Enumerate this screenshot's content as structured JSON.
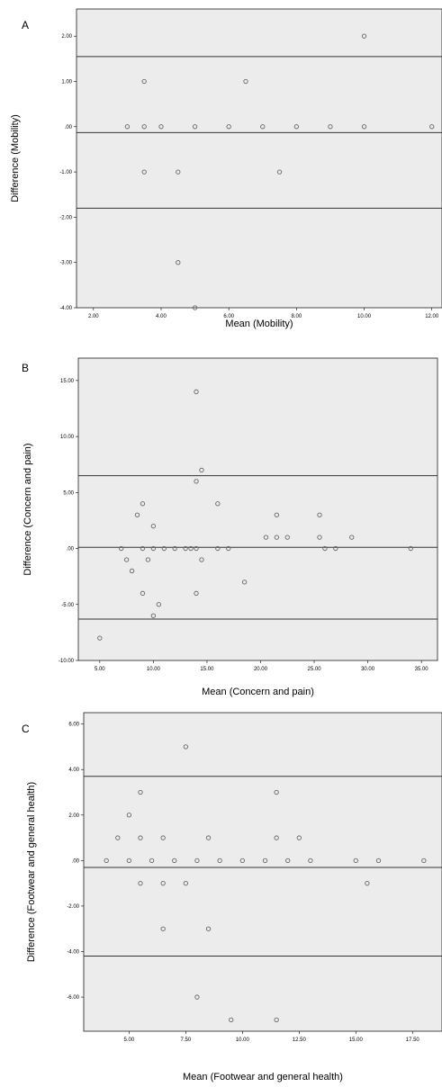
{
  "chart_data": [
    {
      "type": "scatter",
      "panel_label": "A",
      "xlabel": "Mean (Mobility)",
      "ylabel": "Difference (Mobility)",
      "xlim": [
        1.5,
        12.3
      ],
      "ylim": [
        -4.0,
        2.6
      ],
      "xticks": [
        2.0,
        4.0,
        6.0,
        8.0,
        10.0,
        12.0
      ],
      "yticks": [
        -4.0,
        -3.0,
        -2.0,
        -1.0,
        0.0,
        1.0,
        2.0
      ],
      "xtick_labels": [
        "2.00",
        "4.00",
        "6.00",
        "8.00",
        "10.00",
        "12.00"
      ],
      "ytick_labels": [
        "-4.00",
        "-3.00",
        "-2.00",
        "-1.00",
        ".00",
        "1.00",
        "2.00"
      ],
      "reference_lines": [
        1.55,
        -0.13,
        -1.8
      ],
      "points": [
        [
          3.0,
          0.0
        ],
        [
          3.5,
          1.0
        ],
        [
          3.5,
          0.0
        ],
        [
          3.5,
          -1.0
        ],
        [
          4.0,
          0.0
        ],
        [
          4.5,
          -1.0
        ],
        [
          4.5,
          -3.0
        ],
        [
          5.0,
          0.0
        ],
        [
          5.0,
          -4.0
        ],
        [
          6.0,
          0.0
        ],
        [
          6.5,
          1.0
        ],
        [
          7.0,
          0.0
        ],
        [
          7.5,
          -1.0
        ],
        [
          8.0,
          0.0
        ],
        [
          9.0,
          0.0
        ],
        [
          10.0,
          2.0
        ],
        [
          10.0,
          0.0
        ],
        [
          12.0,
          0.0
        ]
      ],
      "grid": false,
      "legend": "none"
    },
    {
      "type": "scatter",
      "panel_label": "B",
      "xlabel": "Mean (Concern and pain)",
      "ylabel": "Difference (Concern and pain)",
      "xlim": [
        3.0,
        36.5
      ],
      "ylim": [
        -10.0,
        17.0
      ],
      "xticks": [
        5,
        10,
        15,
        20,
        25,
        30,
        35
      ],
      "yticks": [
        -10,
        -5,
        0,
        5,
        10,
        15
      ],
      "xtick_labels": [
        "5.00",
        "10.00",
        "15.00",
        "20.00",
        "25.00",
        "30.00",
        "35.00"
      ],
      "ytick_labels": [
        "-10.00",
        "-5.00",
        ".00",
        "5.00",
        "10.00",
        "15.00"
      ],
      "reference_lines": [
        6.5,
        0.1,
        -6.3
      ],
      "points": [
        [
          5.0,
          -8.0
        ],
        [
          7.0,
          0.0
        ],
        [
          7.5,
          -1.0
        ],
        [
          8.0,
          -2.0
        ],
        [
          8.5,
          3.0
        ],
        [
          9.0,
          4.0
        ],
        [
          9.0,
          0.0
        ],
        [
          9.0,
          -4.0
        ],
        [
          9.5,
          -1.0
        ],
        [
          10.0,
          2.0
        ],
        [
          10.0,
          0.0
        ],
        [
          10.0,
          -6.0
        ],
        [
          10.5,
          -5.0
        ],
        [
          11.0,
          0.0
        ],
        [
          12.0,
          0.0
        ],
        [
          13.0,
          0.0
        ],
        [
          13.5,
          0.0
        ],
        [
          14.0,
          14.0
        ],
        [
          14.0,
          6.0
        ],
        [
          14.0,
          0.0
        ],
        [
          14.0,
          -4.0
        ],
        [
          14.5,
          7.0
        ],
        [
          14.5,
          -1.0
        ],
        [
          16.0,
          4.0
        ],
        [
          16.0,
          0.0
        ],
        [
          17.0,
          0.0
        ],
        [
          18.5,
          -3.0
        ],
        [
          20.5,
          1.0
        ],
        [
          21.5,
          3.0
        ],
        [
          21.5,
          1.0
        ],
        [
          22.5,
          1.0
        ],
        [
          25.5,
          3.0
        ],
        [
          25.5,
          1.0
        ],
        [
          26.0,
          0.0
        ],
        [
          27.0,
          0.0
        ],
        [
          28.5,
          1.0
        ],
        [
          34.0,
          0.0
        ]
      ],
      "grid": false,
      "legend": "none"
    },
    {
      "type": "scatter",
      "panel_label": "C",
      "xlabel": "Mean (Footwear and general health)",
      "ylabel": "Difference (Footwear and general health)",
      "xlim": [
        3.0,
        18.8
      ],
      "ylim": [
        -7.5,
        6.5
      ],
      "xticks": [
        5.0,
        7.5,
        10.0,
        12.5,
        15.0,
        17.5
      ],
      "yticks": [
        -6.0,
        -4.0,
        -2.0,
        0.0,
        2.0,
        4.0,
        6.0
      ],
      "xtick_labels": [
        "5.00",
        "7.50",
        "10.00",
        "12.50",
        "15.00",
        "17.50"
      ],
      "ytick_labels": [
        "-6.00",
        "-4.00",
        "-2.00",
        ".00",
        "2.00",
        "4.00",
        "6.00"
      ],
      "reference_lines": [
        3.7,
        -0.3,
        -4.2
      ],
      "points": [
        [
          4.0,
          0.0
        ],
        [
          4.5,
          1.0
        ],
        [
          5.0,
          2.0
        ],
        [
          5.0,
          0.0
        ],
        [
          5.5,
          3.0
        ],
        [
          5.5,
          1.0
        ],
        [
          5.5,
          -1.0
        ],
        [
          6.0,
          0.0
        ],
        [
          6.5,
          1.0
        ],
        [
          6.5,
          -1.0
        ],
        [
          6.5,
          -3.0
        ],
        [
          7.0,
          0.0
        ],
        [
          7.5,
          5.0
        ],
        [
          7.5,
          -1.0
        ],
        [
          8.0,
          0.0
        ],
        [
          8.0,
          -6.0
        ],
        [
          8.5,
          1.0
        ],
        [
          8.5,
          -3.0
        ],
        [
          9.0,
          0.0
        ],
        [
          9.5,
          -7.0
        ],
        [
          10.0,
          0.0
        ],
        [
          11.0,
          0.0
        ],
        [
          11.5,
          3.0
        ],
        [
          11.5,
          1.0
        ],
        [
          11.5,
          -7.0
        ],
        [
          12.0,
          0.0
        ],
        [
          12.5,
          1.0
        ],
        [
          13.0,
          0.0
        ],
        [
          15.0,
          0.0
        ],
        [
          15.5,
          -1.0
        ],
        [
          16.0,
          0.0
        ],
        [
          18.0,
          0.0
        ]
      ],
      "grid": false,
      "legend": "none"
    }
  ]
}
